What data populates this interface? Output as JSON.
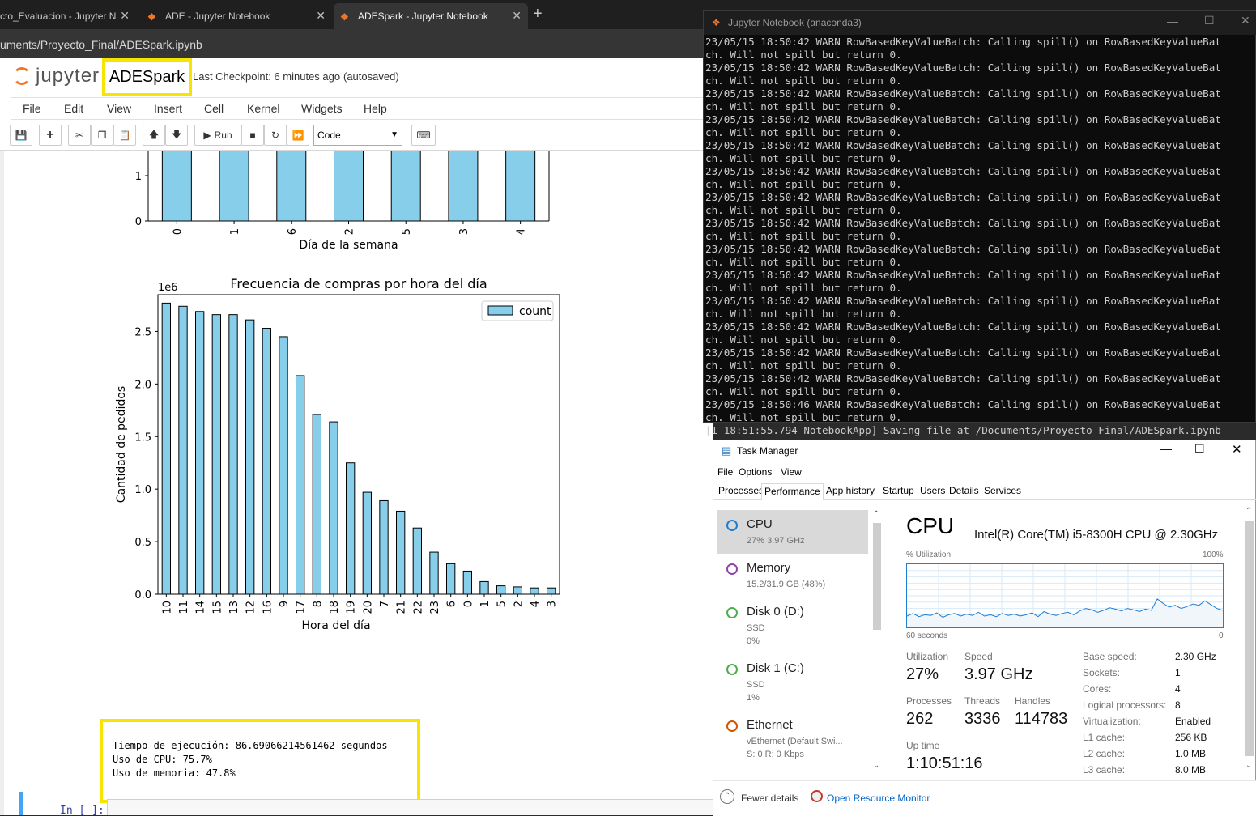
{
  "browser": {
    "tabs": [
      {
        "title": "cto_Evaluacion - Jupyter N",
        "active": false
      },
      {
        "title": "ADE - Jupyter Notebook",
        "active": false
      },
      {
        "title": "ADESpark - Jupyter Notebook",
        "active": true
      }
    ],
    "new_tab": "+",
    "url": "uments/Proyecto_Final/ADESpark.ipynb"
  },
  "jupyter": {
    "logo_text": "jupyter",
    "notebook_name": "ADESpark",
    "checkpoint": "Last Checkpoint: 6 minutes ago",
    "autosave": "(autosaved)",
    "menu": [
      "File",
      "Edit",
      "View",
      "Insert",
      "Cell",
      "Kernel",
      "Widgets",
      "Help"
    ],
    "toolbar": {
      "run_label": "Run",
      "cell_type": "Code"
    }
  },
  "chart_top": {
    "xlabel": "Día de la semana",
    "categories": [
      "0",
      "1",
      "6",
      "2",
      "5",
      "3",
      "4"
    ],
    "visible_yticks": [
      "0",
      "1"
    ]
  },
  "chart_data": {
    "type": "bar",
    "title": "Frecuencia de compras por hora del día",
    "xlabel": "Hora del día",
    "ylabel": "Cantidad de pedidos",
    "y_offset_label": "1e6",
    "legend": "count",
    "legend_position": "top-right",
    "color": "#87ceeb",
    "ylim": [
      0,
      2.85
    ],
    "yticks": [
      "0.0",
      "0.5",
      "1.0",
      "1.5",
      "2.0",
      "2.5"
    ],
    "categories": [
      "10",
      "11",
      "14",
      "15",
      "13",
      "12",
      "16",
      "9",
      "17",
      "8",
      "18",
      "19",
      "20",
      "7",
      "21",
      "22",
      "23",
      "6",
      "0",
      "1",
      "5",
      "2",
      "4",
      "3"
    ],
    "values": [
      2.77,
      2.74,
      2.69,
      2.66,
      2.66,
      2.61,
      2.53,
      2.45,
      2.08,
      1.71,
      1.64,
      1.25,
      0.97,
      0.89,
      0.79,
      0.63,
      0.4,
      0.29,
      0.22,
      0.12,
      0.08,
      0.07,
      0.06,
      0.06
    ]
  },
  "output": {
    "lines": [
      "Tiempo de ejecución: 86.69066214561462 segundos",
      "Uso de CPU: 75.7%",
      "Uso de memoria: 47.8%"
    ]
  },
  "input_cell": {
    "prompt": "In [ ]:"
  },
  "console": {
    "title": "Jupyter Notebook (anaconda3)",
    "lines": [
      "23/05/15 18:50:42 WARN RowBasedKeyValueBatch: Calling spill() on RowBasedKeyValueBat",
      "ch. Will not spill but return 0.",
      "23/05/15 18:50:42 WARN RowBasedKeyValueBatch: Calling spill() on RowBasedKeyValueBat",
      "ch. Will not spill but return 0.",
      "23/05/15 18:50:42 WARN RowBasedKeyValueBatch: Calling spill() on RowBasedKeyValueBat",
      "ch. Will not spill but return 0.",
      "23/05/15 18:50:42 WARN RowBasedKeyValueBatch: Calling spill() on RowBasedKeyValueBat",
      "ch. Will not spill but return 0.",
      "23/05/15 18:50:42 WARN RowBasedKeyValueBatch: Calling spill() on RowBasedKeyValueBat",
      "ch. Will not spill but return 0.",
      "23/05/15 18:50:42 WARN RowBasedKeyValueBatch: Calling spill() on RowBasedKeyValueBat",
      "ch. Will not spill but return 0.",
      "23/05/15 18:50:42 WARN RowBasedKeyValueBatch: Calling spill() on RowBasedKeyValueBat",
      "ch. Will not spill but return 0.",
      "23/05/15 18:50:42 WARN RowBasedKeyValueBatch: Calling spill() on RowBasedKeyValueBat",
      "ch. Will not spill but return 0.",
      "23/05/15 18:50:42 WARN RowBasedKeyValueBatch: Calling spill() on RowBasedKeyValueBat",
      "ch. Will not spill but return 0.",
      "23/05/15 18:50:42 WARN RowBasedKeyValueBatch: Calling spill() on RowBasedKeyValueBat",
      "ch. Will not spill but return 0.",
      "23/05/15 18:50:42 WARN RowBasedKeyValueBatch: Calling spill() on RowBasedKeyValueBat",
      "ch. Will not spill but return 0.",
      "23/05/15 18:50:42 WARN RowBasedKeyValueBatch: Calling spill() on RowBasedKeyValueBat",
      "ch. Will not spill but return 0.",
      "23/05/15 18:50:42 WARN RowBasedKeyValueBatch: Calling spill() on RowBasedKeyValueBat",
      "ch. Will not spill but return 0.",
      "23/05/15 18:50:42 WARN RowBasedKeyValueBatch: Calling spill() on RowBasedKeyValueBat",
      "ch. Will not spill but return 0.",
      "23/05/15 18:50:46 WARN RowBasedKeyValueBatch: Calling spill() on RowBasedKeyValueBat",
      "ch. Will not spill but return 0.",
      "[I 18:51:55.794 NotebookApp] Saving file at /Documents/Proyecto_Final/ADESpark.ipynb"
    ]
  },
  "task_manager": {
    "title": "Task Manager",
    "menu": [
      "File",
      "Options",
      "View"
    ],
    "tabs": [
      "Processes",
      "Performance",
      "App history",
      "Startup",
      "Users",
      "Details",
      "Services"
    ],
    "active_tab": "Performance",
    "resources": [
      {
        "name": "CPU",
        "sub1": "27%  3.97 GHz",
        "sub2": "",
        "sub3": "",
        "color": "#1c7ed6"
      },
      {
        "name": "Memory",
        "sub1": "15.2/31.9 GB (48%)",
        "sub2": "",
        "sub3": "",
        "color": "#8e44ad"
      },
      {
        "name": "Disk 0 (D:)",
        "sub1": "SSD",
        "sub2": "0%",
        "sub3": "",
        "color": "#4cae4c"
      },
      {
        "name": "Disk 1 (C:)",
        "sub1": "SSD",
        "sub2": "1%",
        "sub3": "",
        "color": "#4cae4c"
      },
      {
        "name": "Ethernet",
        "sub1": "vEthernet (Default Swi...",
        "sub2": "S: 0 R: 0 Kbps",
        "sub3": "",
        "color": "#d35400"
      }
    ],
    "cpu": {
      "title": "CPU",
      "model": "Intel(R) Core(TM) i5-8300H CPU @ 2.30GHz",
      "util_label": "% Utilization",
      "max_label": "100%",
      "time_label": "60 seconds",
      "min_label": "0",
      "utilization_history": [
        0.18,
        0.22,
        0.17,
        0.2,
        0.19,
        0.23,
        0.16,
        0.2,
        0.22,
        0.18,
        0.21,
        0.19,
        0.24,
        0.18,
        0.2,
        0.17,
        0.22,
        0.19,
        0.21,
        0.18,
        0.2,
        0.23,
        0.17,
        0.25,
        0.21,
        0.19,
        0.22,
        0.24,
        0.2,
        0.26,
        0.3,
        0.28,
        0.24,
        0.27,
        0.31,
        0.29,
        0.26,
        0.3,
        0.28,
        0.25,
        0.29,
        0.27,
        0.45,
        0.38,
        0.32,
        0.35,
        0.3,
        0.33,
        0.37,
        0.35,
        0.42,
        0.36,
        0.3,
        0.27
      ],
      "utilization_label": "Utilization",
      "utilization": "27%",
      "speed_label": "Speed",
      "speed": "3.97 GHz",
      "processes_label": "Processes",
      "processes": "262",
      "threads_label": "Threads",
      "threads": "3336",
      "handles_label": "Handles",
      "handles": "114783",
      "uptime_label": "Up time",
      "uptime": "1:10:51:16",
      "specs": [
        {
          "k": "Base speed:",
          "v": "2.30 GHz"
        },
        {
          "k": "Sockets:",
          "v": "1"
        },
        {
          "k": "Cores:",
          "v": "4"
        },
        {
          "k": "Logical processors:",
          "v": "8"
        },
        {
          "k": "Virtualization:",
          "v": "Enabled"
        },
        {
          "k": "L1 cache:",
          "v": "256 KB"
        },
        {
          "k": "L2 cache:",
          "v": "1.0 MB"
        },
        {
          "k": "L3 cache:",
          "v": "8.0 MB"
        }
      ]
    },
    "footer": {
      "fewer": "Fewer details",
      "resmon": "Open Resource Monitor"
    }
  }
}
